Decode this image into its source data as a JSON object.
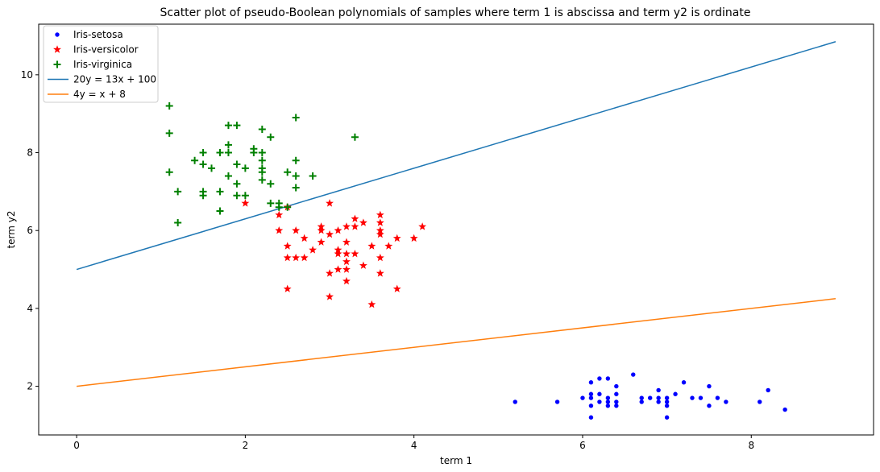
{
  "chart_data": {
    "type": "scatter",
    "title": "Scatter plot of pseudo-Boolean polynomials of samples where term 1 is abscissa and term y2 is ordinate",
    "xlabel": "term 1",
    "ylabel": "term y2",
    "xlim": [
      -0.45,
      9.45
    ],
    "ylim": [
      0.75,
      11.3
    ],
    "xticks": [
      0,
      2,
      4,
      6,
      8
    ],
    "yticks": [
      2,
      4,
      6,
      8,
      10
    ],
    "grid": false,
    "legend_position": "top-left",
    "series": [
      {
        "name": "Iris-setosa",
        "marker": "dot",
        "color": "#0000ff",
        "points": [
          [
            5.2,
            1.6
          ],
          [
            5.7,
            1.6
          ],
          [
            6.0,
            1.7
          ],
          [
            6.1,
            2.1
          ],
          [
            6.1,
            1.8
          ],
          [
            6.1,
            1.7
          ],
          [
            6.1,
            1.5
          ],
          [
            6.1,
            1.2
          ],
          [
            6.2,
            2.2
          ],
          [
            6.2,
            1.8
          ],
          [
            6.2,
            1.6
          ],
          [
            6.3,
            2.2
          ],
          [
            6.3,
            1.7
          ],
          [
            6.3,
            1.6
          ],
          [
            6.3,
            1.5
          ],
          [
            6.4,
            2.0
          ],
          [
            6.4,
            1.8
          ],
          [
            6.4,
            1.6
          ],
          [
            6.4,
            1.5
          ],
          [
            6.6,
            2.3
          ],
          [
            6.7,
            1.7
          ],
          [
            6.7,
            1.6
          ],
          [
            6.8,
            1.7
          ],
          [
            6.9,
            1.9
          ],
          [
            6.9,
            1.7
          ],
          [
            6.9,
            1.6
          ],
          [
            7.0,
            1.7
          ],
          [
            7.0,
            1.6
          ],
          [
            7.0,
            1.5
          ],
          [
            7.0,
            1.2
          ],
          [
            7.1,
            1.8
          ],
          [
            7.2,
            2.1
          ],
          [
            7.3,
            1.7
          ],
          [
            7.4,
            1.7
          ],
          [
            7.5,
            2.0
          ],
          [
            7.5,
            1.5
          ],
          [
            7.6,
            1.7
          ],
          [
            7.7,
            1.6
          ],
          [
            8.1,
            1.6
          ],
          [
            8.2,
            1.9
          ],
          [
            8.4,
            1.4
          ]
        ]
      },
      {
        "name": "Iris-versicolor",
        "marker": "star",
        "color": "#ff0000",
        "points": [
          [
            2.0,
            6.7
          ],
          [
            2.4,
            6.4
          ],
          [
            2.4,
            6.0
          ],
          [
            2.5,
            6.6
          ],
          [
            2.5,
            5.6
          ],
          [
            2.5,
            5.3
          ],
          [
            2.5,
            4.5
          ],
          [
            2.6,
            6.0
          ],
          [
            2.6,
            5.3
          ],
          [
            2.7,
            5.8
          ],
          [
            2.7,
            5.3
          ],
          [
            2.8,
            5.5
          ],
          [
            2.9,
            6.1
          ],
          [
            2.9,
            6.0
          ],
          [
            2.9,
            5.7
          ],
          [
            3.0,
            6.7
          ],
          [
            3.0,
            5.9
          ],
          [
            3.0,
            4.9
          ],
          [
            3.0,
            4.3
          ],
          [
            3.1,
            6.0
          ],
          [
            3.1,
            5.5
          ],
          [
            3.1,
            5.4
          ],
          [
            3.1,
            5.0
          ],
          [
            3.2,
            6.1
          ],
          [
            3.2,
            5.7
          ],
          [
            3.2,
            5.4
          ],
          [
            3.2,
            5.2
          ],
          [
            3.2,
            5.0
          ],
          [
            3.2,
            4.7
          ],
          [
            3.3,
            6.3
          ],
          [
            3.3,
            6.1
          ],
          [
            3.3,
            5.4
          ],
          [
            3.4,
            6.2
          ],
          [
            3.4,
            5.1
          ],
          [
            3.5,
            5.6
          ],
          [
            3.5,
            4.1
          ],
          [
            3.6,
            6.4
          ],
          [
            3.6,
            6.2
          ],
          [
            3.6,
            6.0
          ],
          [
            3.6,
            5.9
          ],
          [
            3.6,
            5.3
          ],
          [
            3.6,
            4.9
          ],
          [
            3.7,
            5.6
          ],
          [
            3.8,
            5.8
          ],
          [
            3.8,
            4.5
          ],
          [
            4.0,
            5.8
          ],
          [
            4.1,
            6.1
          ]
        ]
      },
      {
        "name": "Iris-virginica",
        "marker": "plus",
        "color": "#008000",
        "points": [
          [
            1.1,
            9.2
          ],
          [
            1.1,
            8.5
          ],
          [
            1.1,
            7.5
          ],
          [
            1.2,
            7.0
          ],
          [
            1.2,
            6.2
          ],
          [
            1.4,
            7.8
          ],
          [
            1.5,
            8.0
          ],
          [
            1.5,
            7.7
          ],
          [
            1.5,
            7.0
          ],
          [
            1.5,
            6.9
          ],
          [
            1.6,
            7.6
          ],
          [
            1.7,
            8.0
          ],
          [
            1.7,
            7.0
          ],
          [
            1.7,
            6.5
          ],
          [
            1.8,
            8.7
          ],
          [
            1.8,
            8.2
          ],
          [
            1.8,
            8.0
          ],
          [
            1.8,
            7.4
          ],
          [
            1.9,
            8.7
          ],
          [
            1.9,
            7.7
          ],
          [
            1.9,
            7.2
          ],
          [
            1.9,
            6.9
          ],
          [
            2.0,
            7.6
          ],
          [
            2.0,
            6.9
          ],
          [
            2.1,
            8.1
          ],
          [
            2.1,
            8.0
          ],
          [
            2.2,
            8.6
          ],
          [
            2.2,
            8.0
          ],
          [
            2.2,
            7.8
          ],
          [
            2.2,
            7.6
          ],
          [
            2.2,
            7.5
          ],
          [
            2.2,
            7.3
          ],
          [
            2.3,
            8.4
          ],
          [
            2.3,
            7.2
          ],
          [
            2.3,
            6.7
          ],
          [
            2.4,
            6.7
          ],
          [
            2.4,
            6.6
          ],
          [
            2.5,
            7.5
          ],
          [
            2.5,
            6.6
          ],
          [
            2.6,
            8.9
          ],
          [
            2.6,
            7.8
          ],
          [
            2.6,
            7.4
          ],
          [
            2.6,
            7.1
          ],
          [
            2.8,
            7.4
          ],
          [
            3.3,
            8.4
          ]
        ]
      }
    ],
    "lines": [
      {
        "name": "20y = 13x + 100",
        "color": "#1f77b4",
        "x": [
          0,
          9
        ],
        "y": [
          5,
          10.85
        ]
      },
      {
        "name": "4y = x + 8",
        "color": "#ff7f0e",
        "x": [
          0,
          9
        ],
        "y": [
          2,
          4.25
        ]
      }
    ]
  }
}
